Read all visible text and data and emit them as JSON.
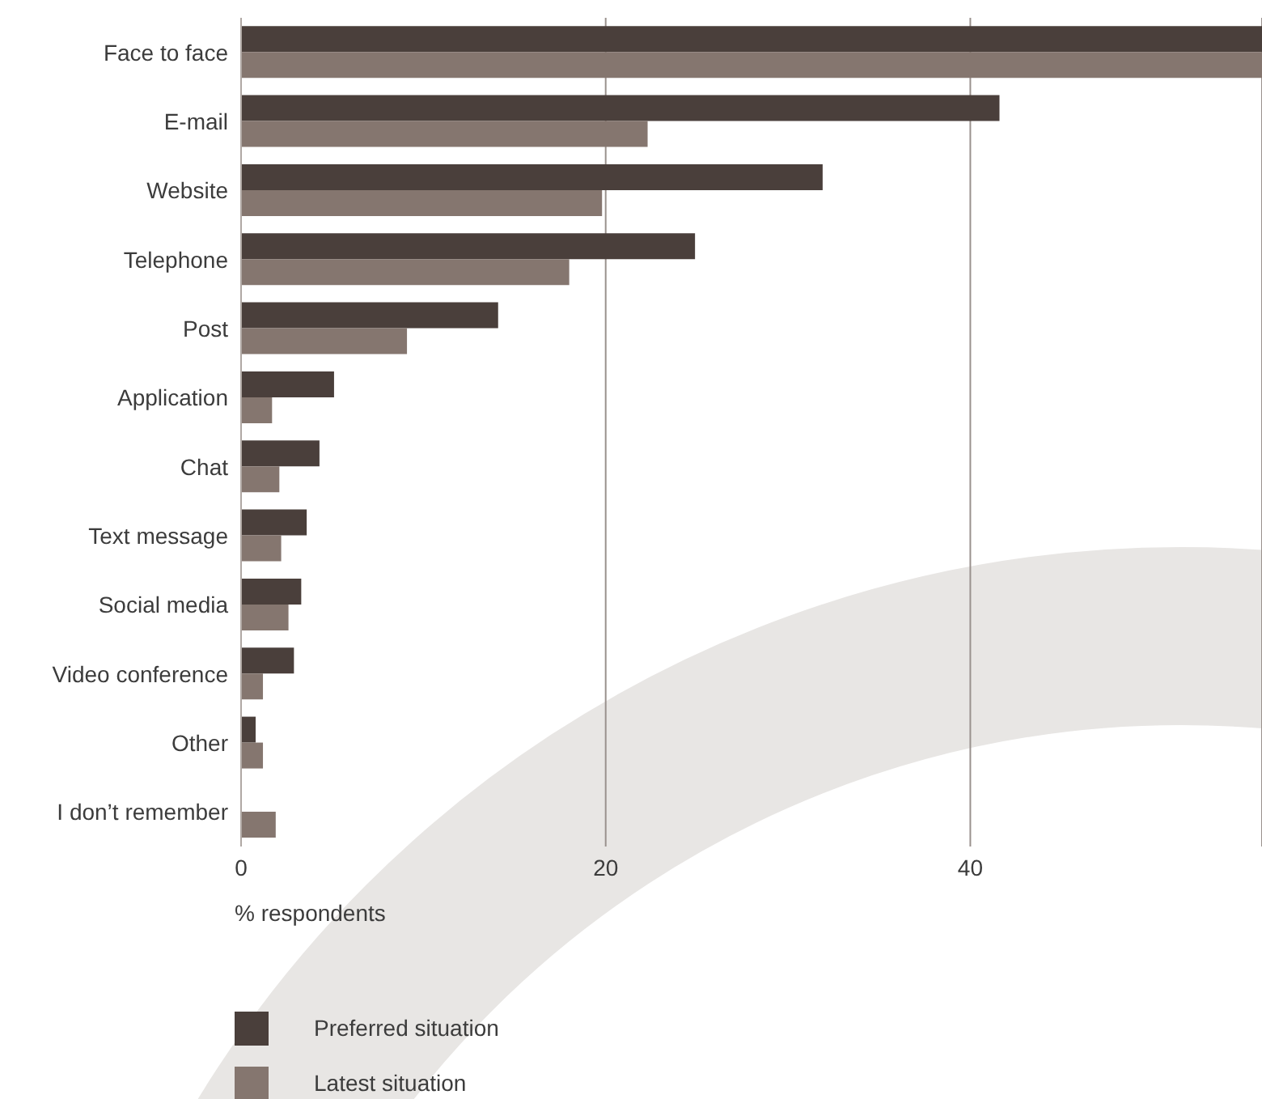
{
  "chart_data": {
    "type": "bar",
    "orientation": "horizontal",
    "xlabel": "% respondents",
    "categories": [
      "Face to face",
      "E-mail",
      "Website",
      "Telephone",
      "Post",
      "Application",
      "Chat",
      "Text message",
      "Social media",
      "Video conference",
      "Other",
      "I don’t remember"
    ],
    "series": [
      {
        "name": "Preferred situation",
        "color": "#4a3f3b",
        "values": [
          56,
          41.6,
          31.9,
          24.9,
          14.1,
          5.1,
          4.3,
          3.6,
          3.3,
          2.9,
          0.8,
          0
        ]
      },
      {
        "name": "Latest situation",
        "color": "#85766f",
        "values": [
          56,
          22.3,
          19.8,
          18.0,
          9.1,
          1.7,
          2.1,
          2.2,
          2.6,
          1.2,
          1.2,
          1.9
        ]
      }
    ],
    "xlim": [
      0,
      56
    ],
    "xticks": [
      0,
      20,
      40
    ],
    "grid": "x",
    "legend": "bottom left"
  }
}
